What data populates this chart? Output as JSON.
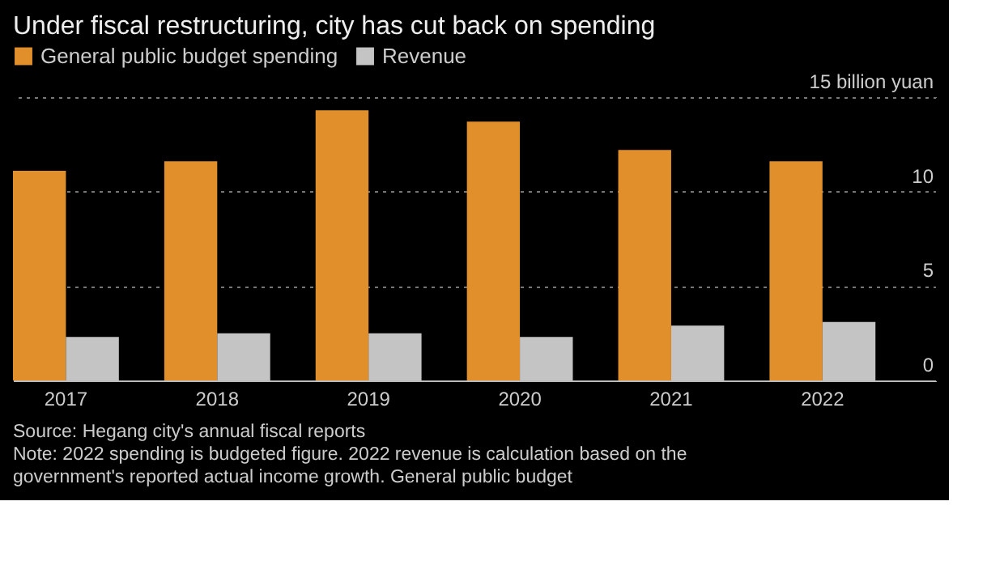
{
  "chart_data": {
    "type": "bar",
    "subtitle": "Under fiscal restructuring, city has cut back on spending",
    "categories": [
      "2017",
      "2018",
      "2019",
      "2020",
      "2021",
      "2022"
    ],
    "series": [
      {
        "name": "General public budget spending",
        "color": "#e08f2b",
        "values": [
          11.1,
          11.6,
          14.3,
          13.7,
          12.2,
          11.6
        ]
      },
      {
        "name": "Revenue",
        "color": "#c4c4c4",
        "values": [
          2.3,
          2.5,
          2.5,
          2.3,
          2.9,
          3.1
        ]
      }
    ],
    "ylim": [
      0,
      15
    ],
    "yticks": [
      0,
      5,
      10,
      {
        "value": 15,
        "label": "15 billion yuan"
      }
    ],
    "grid": "y",
    "legend": "top left",
    "annotations": [
      "Source: Hegang city's annual fiscal reports",
      "Note: 2022 spending is budgeted figure. 2022 revenue is calculation based on the government's reported actual income growth. General public budget"
    ]
  }
}
